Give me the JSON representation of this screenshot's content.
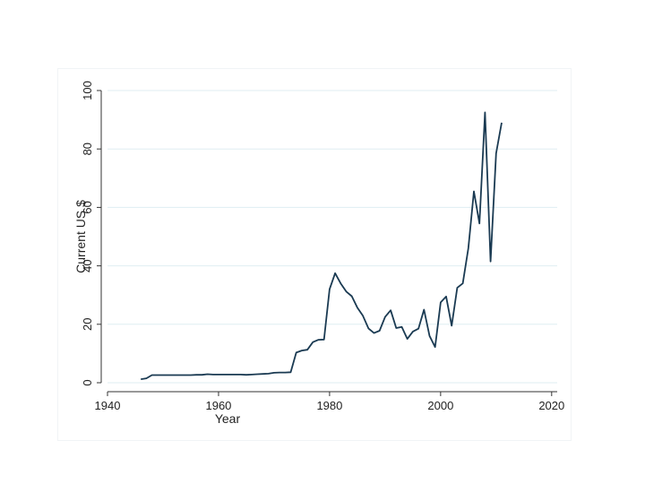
{
  "chart_data": {
    "type": "line",
    "title": "",
    "xlabel": "Year",
    "ylabel": "Current US $",
    "xlim": [
      1940,
      2021
    ],
    "ylim": [
      0,
      100
    ],
    "x_ticks": [
      1940,
      1960,
      1980,
      2000,
      2020
    ],
    "y_ticks": [
      0,
      20,
      40,
      60,
      80,
      100
    ],
    "x_tick_labels": [
      "1940",
      "1960",
      "1980",
      "2000",
      "2020"
    ],
    "y_tick_labels": [
      "0",
      "20",
      "40",
      "60",
      "80",
      "100"
    ],
    "grid": true,
    "legend": "none",
    "colors": {
      "line": "#1a3a52",
      "grid": "#dfeef2",
      "axis": "#333333"
    },
    "series": [
      {
        "x": [
          1946,
          1947,
          1948,
          1949,
          1950,
          1951,
          1952,
          1953,
          1954,
          1955,
          1956,
          1957,
          1958,
          1959,
          1960,
          1961,
          1962,
          1963,
          1964,
          1965,
          1966,
          1967,
          1968,
          1969,
          1970,
          1971,
          1972,
          1973,
          1974,
          1975,
          1976,
          1977,
          1978,
          1979,
          1980,
          1981,
          1982,
          1983,
          1984,
          1985,
          1986,
          1987,
          1988,
          1989,
          1990,
          1991,
          1992,
          1993,
          1994,
          1995,
          1996,
          1997,
          1998,
          1999,
          2000,
          2001,
          2002,
          2003,
          2004,
          2005,
          2006,
          2007,
          2008,
          2009,
          2010,
          2011
        ],
        "values": [
          1.2,
          1.5,
          2.6,
          2.6,
          2.6,
          2.6,
          2.6,
          2.6,
          2.6,
          2.6,
          2.7,
          2.7,
          2.9,
          2.8,
          2.8,
          2.8,
          2.8,
          2.8,
          2.8,
          2.7,
          2.8,
          2.9,
          3.0,
          3.1,
          3.4,
          3.5,
          3.5,
          3.6,
          10.3,
          11.0,
          11.3,
          13.9,
          14.7,
          14.8,
          32.0,
          37.5,
          34.0,
          31.2,
          29.6,
          25.7,
          22.9,
          18.6,
          17.0,
          17.8,
          22.5,
          24.8,
          18.7,
          19.1,
          15.0,
          17.5,
          18.5,
          25.0,
          16.0,
          12.2,
          27.5,
          29.5,
          19.5,
          32.5,
          34.0,
          46.0,
          65.5,
          54.5,
          92.5,
          41.5,
          78.5,
          89.0
        ]
      }
    ]
  }
}
